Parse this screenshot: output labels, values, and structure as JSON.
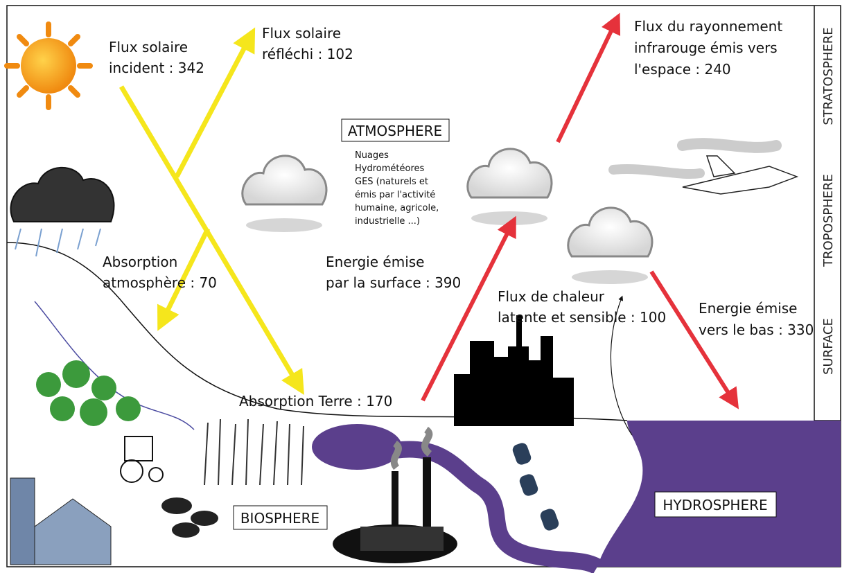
{
  "regions": {
    "atmosphere": "ATMOSPHERE",
    "biosphere": "BIOSPHERE",
    "hydrosphere": "HYDROSPHERE"
  },
  "layers": [
    "STRATOSPHERE",
    "TROPOSPHERE",
    "SURFACE"
  ],
  "atmosphere_components": [
    "Nuages",
    "Hydrométéores",
    "GES (naturels et",
    "émis par l'activité",
    "humaine, agricole,",
    "industrielle ...)"
  ],
  "fluxes": [
    {
      "lines": [
        "Flux solaire",
        "incident : 342"
      ]
    },
    {
      "lines": [
        "Flux solaire",
        "réfléchi : 102"
      ]
    },
    {
      "lines": [
        "Flux du rayonnement",
        "infrarouge émis vers",
        "l'espace : 240"
      ]
    },
    {
      "lines": [
        "Absorption",
        "atmosphère : 70"
      ]
    },
    {
      "lines": [
        "Energie émise",
        "par la surface : 390"
      ]
    },
    {
      "lines": [
        "Flux de chaleur",
        "latente et sensible : 100"
      ]
    },
    {
      "lines": [
        "Energie émise",
        "vers le bas : 330"
      ]
    },
    {
      "lines": [
        "Absorption Terre : 170"
      ]
    }
  ]
}
